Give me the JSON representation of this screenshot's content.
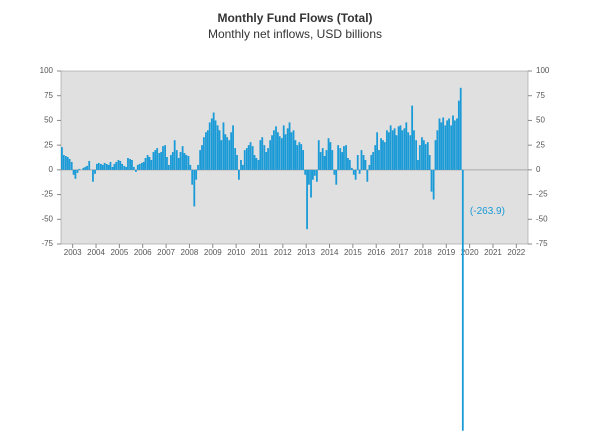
{
  "chart_data": {
    "type": "bar",
    "title": "Monthly Fund Flows (Total)",
    "subtitle": "Monthly net inflows, USD billions",
    "color": "#1a9ad6",
    "background": "#e0e0e0",
    "grid": false,
    "x": [
      2003.0,
      2003.08,
      2003.17,
      2003.25,
      2003.33,
      2003.42,
      2003.5,
      2003.58,
      2003.67,
      2003.75,
      2003.83,
      2003.92,
      2004.0,
      2004.08,
      2004.17,
      2004.25,
      2004.33,
      2004.42,
      2004.5,
      2004.58,
      2004.67,
      2004.75,
      2004.83,
      2004.92,
      2005.0,
      2005.08,
      2005.17,
      2005.25,
      2005.33,
      2005.42,
      2005.5,
      2005.58,
      2005.67,
      2005.75,
      2005.83,
      2005.92,
      2006.0,
      2006.08,
      2006.17,
      2006.25,
      2006.33,
      2006.42,
      2006.5,
      2006.58,
      2006.67,
      2006.75,
      2006.83,
      2006.92,
      2007.0,
      2007.08,
      2007.17,
      2007.25,
      2007.33,
      2007.42,
      2007.5,
      2007.58,
      2007.67,
      2007.75,
      2007.83,
      2007.92,
      2008.0,
      2008.08,
      2008.17,
      2008.25,
      2008.33,
      2008.42,
      2008.5,
      2008.58,
      2008.67,
      2008.75,
      2008.83,
      2008.92,
      2009.0,
      2009.08,
      2009.17,
      2009.25,
      2009.33,
      2009.42,
      2009.5,
      2009.58,
      2009.67,
      2009.75,
      2009.83,
      2009.92,
      2010.0,
      2010.08,
      2010.17,
      2010.25,
      2010.33,
      2010.42,
      2010.5,
      2010.58,
      2010.67,
      2010.75,
      2010.83,
      2010.92,
      2011.0,
      2011.08,
      2011.17,
      2011.25,
      2011.33,
      2011.42,
      2011.5,
      2011.58,
      2011.67,
      2011.75,
      2011.83,
      2011.92,
      2012.0,
      2012.08,
      2012.17,
      2012.25,
      2012.33,
      2012.42,
      2012.5,
      2012.58,
      2012.67,
      2012.75,
      2012.83,
      2012.92,
      2013.0,
      2013.08,
      2013.17,
      2013.25,
      2013.33,
      2013.42,
      2013.5,
      2013.58,
      2013.67,
      2013.75,
      2013.83,
      2013.92,
      2014.0,
      2014.08,
      2014.17,
      2014.25,
      2014.33,
      2014.42,
      2014.5,
      2014.58,
      2014.67,
      2014.75,
      2014.83,
      2014.92,
      2015.0,
      2015.08,
      2015.17,
      2015.25,
      2015.33,
      2015.42,
      2015.5,
      2015.58,
      2015.67,
      2015.75,
      2015.83,
      2015.92,
      2016.0,
      2016.08,
      2016.17,
      2016.25,
      2016.33,
      2016.42,
      2016.5,
      2016.58,
      2016.67,
      2016.75,
      2016.83,
      2016.92,
      2017.0,
      2017.08,
      2017.17,
      2017.25,
      2017.33,
      2017.42,
      2017.5,
      2017.58,
      2017.67,
      2017.75,
      2017.83,
      2017.92,
      2018.0,
      2018.08,
      2018.17,
      2018.25,
      2018.33,
      2018.42,
      2018.5,
      2018.58,
      2018.67,
      2018.75,
      2018.83,
      2018.92,
      2019.0,
      2019.08,
      2019.17,
      2019.25,
      2019.33,
      2019.42,
      2019.5,
      2019.58,
      2019.67,
      2019.75,
      2019.83,
      2019.92,
      2020.0,
      2020.08,
      2020.17
    ],
    "values": [
      23,
      15,
      14,
      13,
      11,
      8,
      -5,
      -9,
      -3,
      1,
      0,
      2,
      3,
      4,
      9,
      0,
      -12,
      -4,
      6,
      7,
      6,
      5,
      7,
      6,
      5,
      8,
      3,
      6,
      8,
      10,
      9,
      6,
      4,
      3,
      12,
      11,
      10,
      3,
      -2,
      5,
      6,
      7,
      8,
      12,
      15,
      13,
      10,
      18,
      20,
      22,
      17,
      18,
      24,
      25,
      13,
      5,
      15,
      18,
      30,
      20,
      12,
      18,
      24,
      17,
      15,
      14,
      5,
      -15,
      -37,
      -10,
      5,
      20,
      25,
      33,
      38,
      40,
      48,
      52,
      58,
      50,
      45,
      40,
      30,
      48,
      36,
      33,
      30,
      38,
      45,
      22,
      15,
      -10,
      10,
      5,
      20,
      22,
      25,
      28,
      24,
      15,
      12,
      10,
      30,
      33,
      25,
      18,
      22,
      30,
      35,
      40,
      44,
      38,
      34,
      32,
      45,
      36,
      42,
      48,
      38,
      40,
      30,
      25,
      28,
      26,
      20,
      -5,
      -60,
      -15,
      -28,
      -10,
      -6,
      -12,
      30,
      18,
      22,
      14,
      20,
      32,
      28,
      20,
      -5,
      -15,
      25,
      22,
      18,
      24,
      25,
      12,
      10,
      2,
      -5,
      -10,
      15,
      -4,
      20,
      15,
      10,
      -12,
      5,
      15,
      18,
      25,
      38,
      20,
      32,
      30,
      28,
      40,
      38,
      45,
      40,
      42,
      35,
      44,
      45,
      40,
      42,
      48,
      38,
      35,
      65,
      40,
      30,
      10,
      25,
      33,
      30,
      26,
      28,
      15,
      -22,
      -30,
      30,
      40,
      52,
      48,
      53,
      45,
      50,
      52,
      45,
      55,
      50,
      52,
      70,
      83,
      -263.9
    ],
    "value_labels": [
      null,
      null,
      null,
      null,
      null,
      null,
      null,
      null,
      null,
      null,
      null,
      null,
      null,
      null,
      null,
      null,
      null,
      null,
      null,
      null,
      null,
      null,
      null,
      null,
      null,
      null,
      null,
      null,
      null,
      null,
      null,
      null,
      null,
      null,
      null,
      null,
      null,
      null,
      null,
      null,
      null,
      null,
      null,
      null,
      null,
      null,
      null,
      null,
      null,
      null,
      null,
      null,
      null,
      null,
      null,
      null,
      null,
      null,
      null,
      null,
      null,
      null,
      null,
      null,
      null,
      null,
      null,
      null,
      null,
      null,
      null,
      null,
      null,
      null,
      null,
      null,
      null,
      null,
      null,
      null,
      null,
      null,
      null,
      null,
      null,
      null,
      null,
      null,
      null,
      null,
      null,
      null,
      null,
      null,
      null,
      null,
      null,
      null,
      null,
      null,
      null,
      null,
      null,
      null,
      null,
      null,
      null,
      null,
      null,
      null,
      null,
      null,
      null,
      null,
      null,
      null,
      null,
      null,
      null,
      null,
      null,
      null,
      null,
      null,
      null,
      null,
      null,
      null,
      null,
      null,
      null,
      null,
      null,
      null,
      null,
      null,
      null,
      null,
      null,
      null,
      null,
      null,
      null,
      null,
      null,
      null,
      null,
      null,
      null,
      null,
      null,
      null,
      null,
      null,
      null,
      null,
      null,
      null,
      null,
      null,
      null,
      null,
      null,
      null,
      null,
      null,
      null,
      null,
      null,
      null,
      null,
      null,
      null,
      null,
      null,
      null,
      null,
      null,
      null,
      null,
      null,
      null,
      null,
      null,
      null,
      null,
      null,
      null,
      null,
      null,
      null,
      null,
      null,
      null,
      null,
      null,
      null,
      null,
      null,
      null,
      null,
      null,
      null,
      null,
      null,
      null,
      "(-263.9)"
    ],
    "xlim": [
      2003,
      2023
    ],
    "xticks": [
      {
        "value": 2003.5,
        "label": "2003"
      },
      {
        "value": 2004.5,
        "label": "2004"
      },
      {
        "value": 2005.5,
        "label": "2005"
      },
      {
        "value": 2006.5,
        "label": "2006"
      },
      {
        "value": 2007.5,
        "label": "2007"
      },
      {
        "value": 2008.5,
        "label": "2008"
      },
      {
        "value": 2009.5,
        "label": "2009"
      },
      {
        "value": 2010.5,
        "label": "2010"
      },
      {
        "value": 2011.5,
        "label": "2011"
      },
      {
        "value": 2012.5,
        "label": "2012"
      },
      {
        "value": 2013.5,
        "label": "2013"
      },
      {
        "value": 2014.5,
        "label": "2014"
      },
      {
        "value": 2015.5,
        "label": "2015"
      },
      {
        "value": 2016.5,
        "label": "2016"
      },
      {
        "value": 2017.5,
        "label": "2017"
      },
      {
        "value": 2018.5,
        "label": "2018"
      },
      {
        "value": 2019.5,
        "label": "2019"
      },
      {
        "value": 2020.5,
        "label": "2020"
      },
      {
        "value": 2021.5,
        "label": "2021"
      },
      {
        "value": 2022.5,
        "label": "2022"
      }
    ],
    "ylim": [
      -75,
      100
    ],
    "yticks": [
      -75,
      -50,
      -25,
      0,
      25,
      50,
      75,
      100
    ]
  }
}
